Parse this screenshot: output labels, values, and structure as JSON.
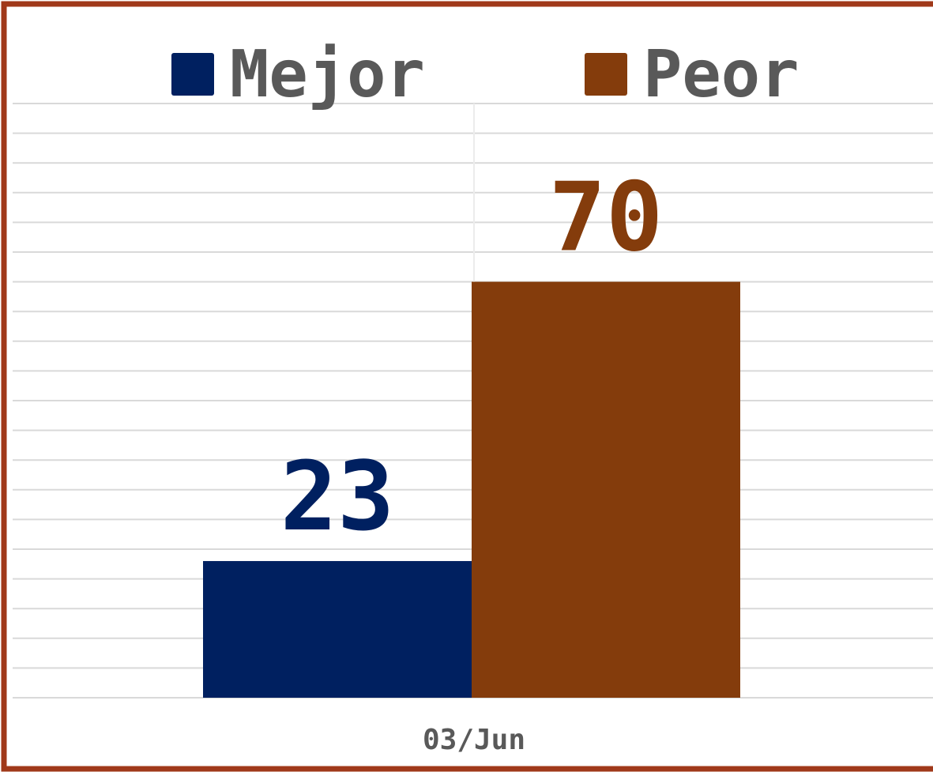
{
  "chart_data": {
    "type": "bar",
    "categories": [
      "03/Jun"
    ],
    "series": [
      {
        "name": "Mejor",
        "color": "#002060",
        "values": [
          23
        ]
      },
      {
        "name": "Peor",
        "color": "#843c0c",
        "values": [
          70
        ]
      }
    ],
    "ylim": [
      0,
      100
    ],
    "yticks": [
      0,
      5,
      10,
      15,
      20,
      25,
      30,
      35,
      40,
      45,
      50,
      55,
      60,
      65,
      70,
      75,
      80,
      85,
      90,
      95,
      100
    ],
    "grid": true,
    "legend": "top"
  }
}
